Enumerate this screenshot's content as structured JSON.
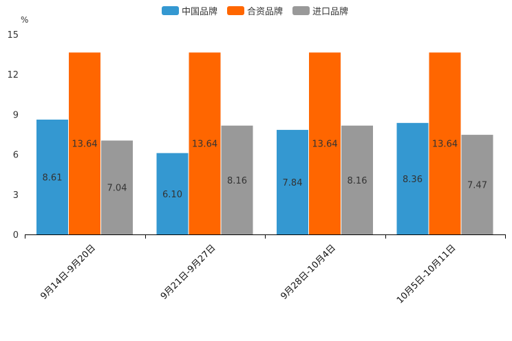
{
  "chart_data": {
    "type": "bar",
    "unit": "%",
    "categories": [
      "9月14日-9月20日",
      "9月21日-9月27日",
      "9月28日-10月4日",
      "10月5日-10月11日"
    ],
    "series": [
      {
        "name": "中国品牌",
        "color": "#3498D1",
        "values": [
          8.61,
          6.1,
          7.84,
          8.36
        ],
        "labels": [
          "8.61",
          "6.10",
          "7.84",
          "8.36"
        ]
      },
      {
        "name": "合资品牌",
        "color": "#FF6600",
        "values": [
          13.64,
          13.64,
          13.64,
          13.64
        ],
        "labels": [
          "13.64",
          "13.64",
          "13.64",
          "13.64"
        ]
      },
      {
        "name": "进口品牌",
        "color": "#999999",
        "values": [
          7.04,
          8.16,
          8.16,
          7.47
        ],
        "labels": [
          "7.04",
          "8.16",
          "8.16",
          "7.47"
        ]
      }
    ],
    "ylim": [
      0,
      15
    ],
    "yticks": [
      "0",
      "3",
      "6",
      "9",
      "12",
      "15"
    ],
    "legend_position": "top-center"
  }
}
